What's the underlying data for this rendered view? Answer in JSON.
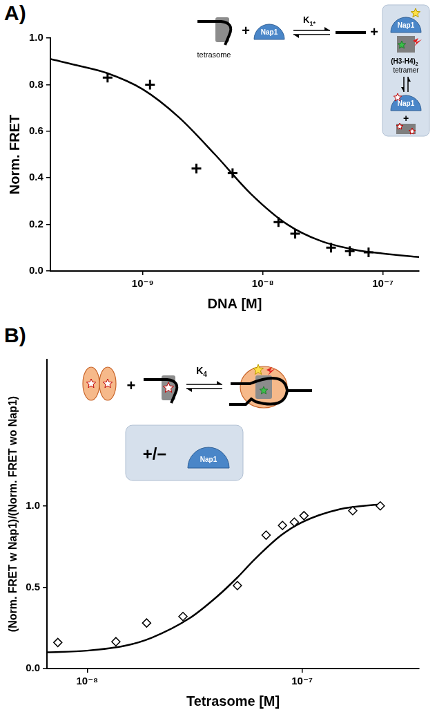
{
  "chart_data": [
    {
      "panel_label": "A)",
      "type": "scatter",
      "log": "x",
      "grid": false,
      "x_label": "DNA [M]",
      "y_label": "Norm. FRET",
      "xlim": [
        1.7e-10,
        2e-07
      ],
      "xticks": [
        {
          "value": 1e-09,
          "label": "10⁻⁹"
        },
        {
          "value": 1e-08,
          "label": "10⁻⁸"
        },
        {
          "value": 1e-07,
          "label": "10⁻⁷"
        }
      ],
      "ylim": [
        0,
        1
      ],
      "yticks": [
        {
          "value": 0,
          "label": "0.0"
        },
        0.2,
        0.4,
        0.6,
        0.8,
        {
          "value": 1,
          "label": "1.0"
        }
      ],
      "series": [
        {
          "type": "scatter",
          "marker": "plus",
          "color": "#000000",
          "x": [
            5.1e-10,
            1.15e-09,
            2.8e-09,
            5.6e-09,
            1.35e-08,
            1.86e-08,
            3.7e-08,
            5.3e-08,
            7.6e-08
          ],
          "values": [
            0.83,
            0.8,
            0.44,
            0.42,
            0.21,
            0.16,
            0.1,
            0.085,
            0.08
          ]
        },
        {
          "type": "line",
          "line_style": "solid",
          "color": "#000000",
          "x": [
            1.7e-10,
            3e-10,
            5e-10,
            1e-09,
            2e-09,
            4e-09,
            8e-09,
            1.6e-08,
            3e-08,
            6e-08,
            1e-07,
            2e-07
          ],
          "values": [
            0.91,
            0.88,
            0.85,
            0.78,
            0.66,
            0.5,
            0.33,
            0.2,
            0.13,
            0.09,
            0.075,
            0.06
          ]
        }
      ],
      "schematic": {
        "substrate": "tetrasome",
        "protein": "Nap1",
        "constant": "K",
        "constant_subscript": "1*",
        "plus": "+",
        "complex": "(H3-H4)",
        "complex_subscript": "2",
        "complex_line2": "tetramer"
      }
    },
    {
      "panel_label": "B)",
      "type": "scatter",
      "log": "x",
      "grid": false,
      "x_label": "Tetrasome [M]",
      "y_label": "(Norm. FRET w Nap1)/(Norm. FRET wo Nap1)",
      "xlim": [
        6.5e-09,
        3.5e-07
      ],
      "xticks": [
        {
          "value": 1e-08,
          "label": "10⁻⁸"
        },
        {
          "value": 1e-07,
          "label": "10⁻⁷"
        }
      ],
      "ylim": [
        0,
        1.9
      ],
      "yticks": [
        {
          "value": 0,
          "label": "0.0"
        },
        0.5,
        {
          "value": 1,
          "label": "1.0"
        }
      ],
      "series": [
        {
          "type": "scatter",
          "marker": "diamond",
          "color": "#000000",
          "x": [
            7.3e-09,
            1.36e-08,
            1.89e-08,
            2.79e-08,
            5e-08,
            6.8e-08,
            8.1e-08,
            9.2e-08,
            1.02e-07,
            1.72e-07,
            2.31e-07
          ],
          "values": [
            0.16,
            0.165,
            0.28,
            0.32,
            0.51,
            0.82,
            0.88,
            0.9,
            0.94,
            0.97,
            1.0
          ]
        },
        {
          "type": "line",
          "line_style": "solid",
          "color": "#000000",
          "x": [
            6.5e-09,
            1e-08,
            1.5e-08,
            2e-08,
            3e-08,
            4e-08,
            5e-08,
            6e-08,
            8e-08,
            1e-07,
            1.5e-07,
            2.3e-07
          ],
          "values": [
            0.1,
            0.11,
            0.14,
            0.19,
            0.31,
            0.44,
            0.56,
            0.67,
            0.82,
            0.9,
            0.98,
            1.01
          ]
        }
      ],
      "schematic": {
        "constant": "K",
        "constant_subscript": "4",
        "plus": "+",
        "condition": "+/−",
        "protein": "Nap1"
      }
    }
  ]
}
